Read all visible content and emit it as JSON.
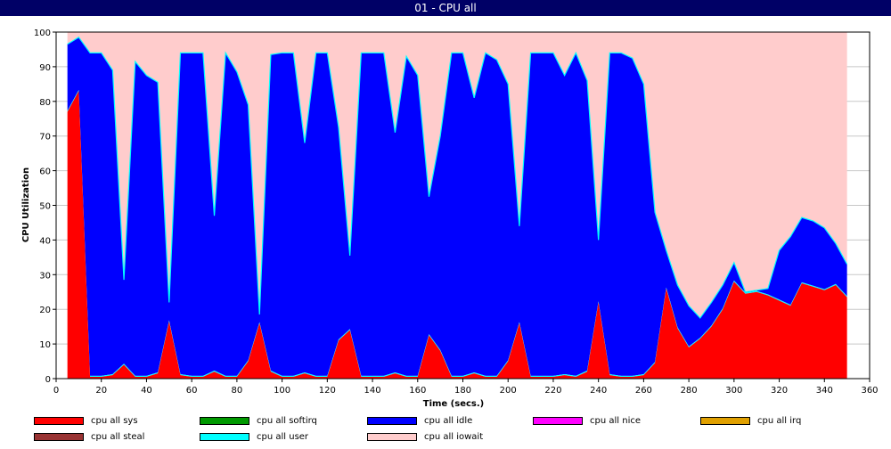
{
  "window": {
    "title": "01 - CPU all"
  },
  "chart_data": {
    "type": "area",
    "stacked": true,
    "title": "",
    "xlabel": "Time (secs.)",
    "ylabel": "CPU Utilization",
    "xlim": [
      0,
      360
    ],
    "ylim": [
      0,
      100
    ],
    "x_ticks": [
      0,
      20,
      40,
      60,
      80,
      100,
      120,
      140,
      160,
      180,
      200,
      220,
      240,
      260,
      280,
      300,
      320,
      340,
      360
    ],
    "y_ticks": [
      0,
      10,
      20,
      30,
      40,
      50,
      60,
      70,
      80,
      90,
      100
    ],
    "grid": true,
    "x": [
      5,
      10,
      15,
      20,
      25,
      30,
      35,
      40,
      45,
      50,
      55,
      60,
      65,
      70,
      75,
      80,
      85,
      90,
      95,
      100,
      105,
      110,
      115,
      120,
      125,
      130,
      135,
      140,
      145,
      150,
      155,
      160,
      165,
      170,
      175,
      180,
      185,
      190,
      195,
      200,
      205,
      210,
      215,
      220,
      225,
      230,
      235,
      240,
      245,
      250,
      255,
      260,
      265,
      270,
      275,
      280,
      285,
      290,
      295,
      300,
      305,
      310,
      315,
      320,
      325,
      330,
      335,
      340,
      345,
      350
    ],
    "sys": [
      77,
      83,
      0.5,
      0.5,
      1,
      4,
      0.5,
      0.5,
      1.5,
      16.5,
      1,
      0.5,
      0.5,
      2,
      0.5,
      0.5,
      5,
      16,
      2,
      0.5,
      0.5,
      1.5,
      0.5,
      0.5,
      11,
      14,
      0.5,
      0.5,
      0.5,
      1.5,
      0.5,
      0.5,
      12.5,
      8,
      0.5,
      0.5,
      1.5,
      0.5,
      0.5,
      5,
      16,
      0.5,
      0.5,
      0.5,
      1,
      0.5,
      2,
      22,
      1,
      0.5,
      0.5,
      1,
      4.5,
      26,
      14.5,
      9,
      11.5,
      15,
      20,
      28,
      24.5,
      25,
      24,
      22.5,
      21,
      27.5,
      26.5,
      25.5,
      27,
      23.5
    ],
    "user": [
      0.3,
      0.3,
      0.3,
      0.3,
      0.3,
      0.3,
      0.3,
      0.3,
      0.3,
      0.3,
      0.3,
      0.3,
      0.3,
      0.3,
      0.3,
      0.3,
      0.3,
      0.3,
      0.3,
      0.3,
      0.3,
      0.3,
      0.3,
      0.3,
      0.3,
      0.3,
      0.3,
      0.3,
      0.3,
      0.3,
      0.3,
      0.3,
      0.3,
      0.3,
      0.3,
      0.3,
      0.3,
      0.3,
      0.3,
      0.3,
      0.3,
      0.3,
      0.3,
      0.3,
      0.3,
      0.3,
      0.3,
      0.3,
      0.3,
      0.3,
      0.3,
      0.3,
      0.3,
      0.3,
      0.3,
      0.3,
      0.3,
      0.3,
      0.3,
      0.3,
      0.3,
      0.3,
      0.3,
      0.3,
      0.3,
      0.3,
      0.3,
      0.3,
      0.3,
      0.3
    ],
    "idle_top": [
      96.5,
      98.5,
      94,
      94,
      89,
      28.5,
      91.5,
      87.5,
      85.5,
      22,
      94,
      94,
      94,
      47,
      94,
      88.5,
      79,
      18.5,
      93.5,
      94,
      94,
      68,
      94,
      94,
      72.5,
      35.5,
      94,
      94,
      94,
      71,
      93,
      87.5,
      52.5,
      70,
      94,
      94,
      81,
      94,
      92,
      85,
      44,
      94,
      94,
      94,
      87.5,
      94,
      86,
      40,
      94,
      94,
      92.5,
      85,
      48,
      37,
      27,
      21,
      17.5,
      22,
      27,
      33.5,
      25,
      25.5,
      26,
      37,
      41,
      46.5,
      45.5,
      43.5,
      39,
      33
    ],
    "series": [
      {
        "name": "cpu all sys",
        "color": "#ff0000"
      },
      {
        "name": "cpu all softirq",
        "color": "#009900"
      },
      {
        "name": "cpu all idle",
        "color": "#0000ff"
      },
      {
        "name": "cpu all nice",
        "color": "#ff00ff"
      },
      {
        "name": "cpu all irq",
        "color": "#e0a000"
      },
      {
        "name": "cpu all steal",
        "color": "#993333"
      },
      {
        "name": "cpu all user",
        "color": "#00ffff"
      },
      {
        "name": "cpu all iowait",
        "color": "#ffcccc"
      }
    ]
  }
}
